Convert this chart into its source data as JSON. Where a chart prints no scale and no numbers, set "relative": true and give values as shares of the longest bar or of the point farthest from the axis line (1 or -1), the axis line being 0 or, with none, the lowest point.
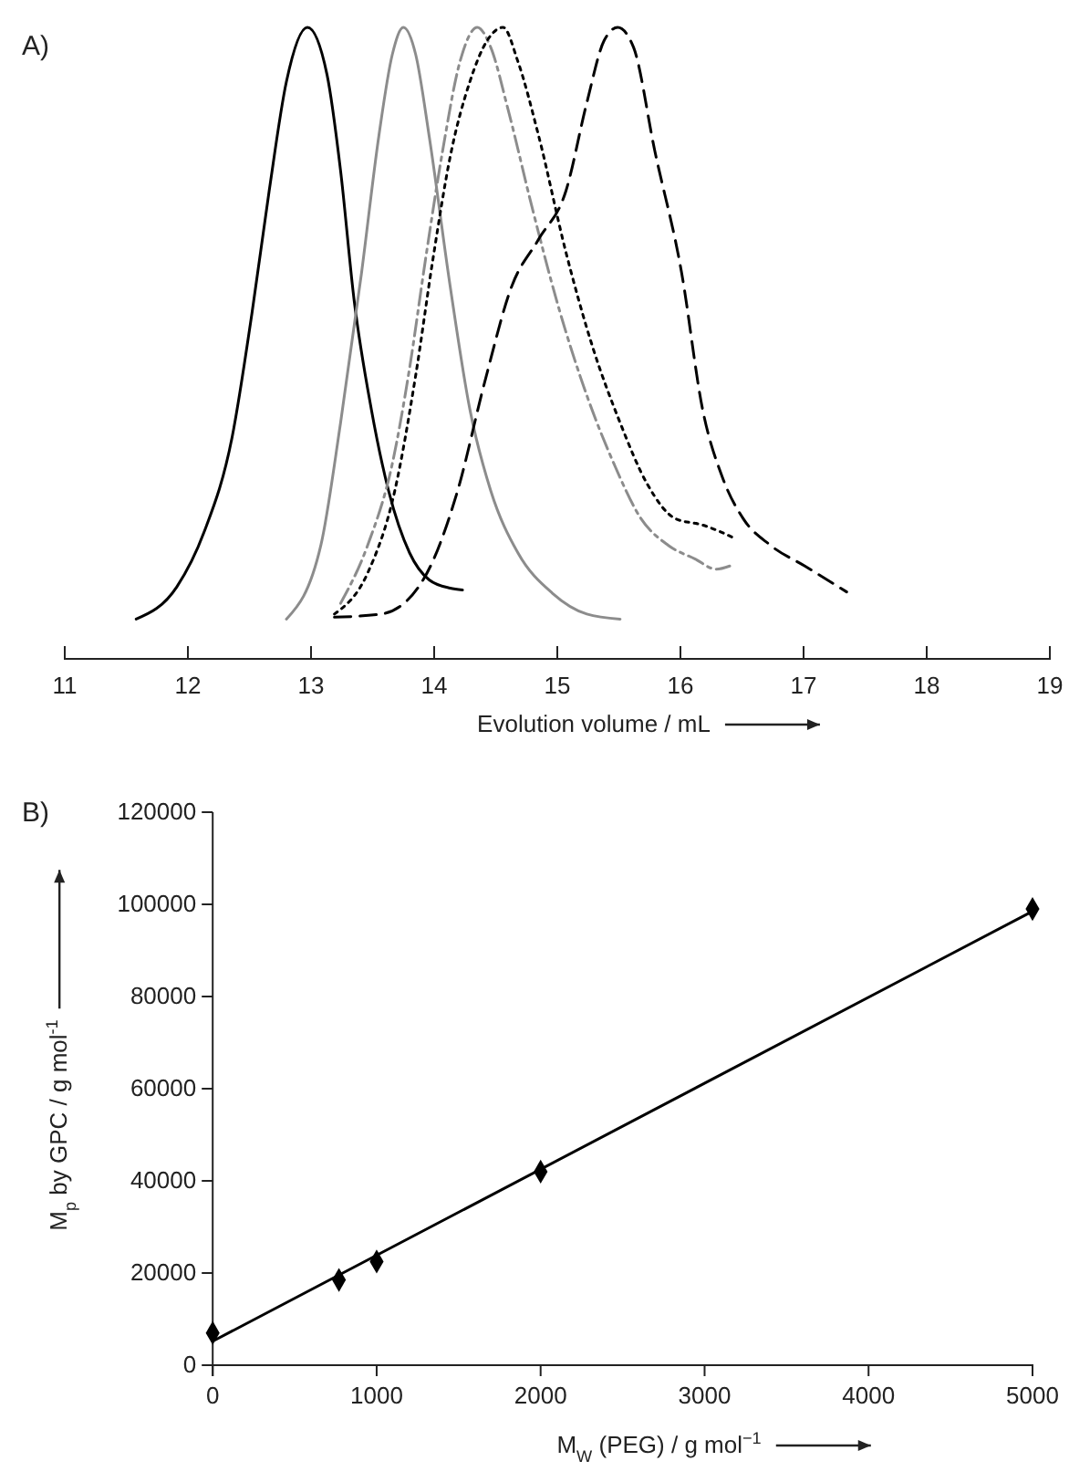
{
  "chart_data": [
    {
      "type": "line",
      "title": "A)",
      "xlabel": "Evolution volume / mL",
      "relative": true,
      "xlim": [
        11,
        19
      ],
      "xticks": [
        11,
        12,
        13,
        14,
        15,
        16,
        17,
        18,
        19
      ],
      "grid": false,
      "series": [
        {
          "color": "#000000",
          "line_style": "solid",
          "x": [
            11.58,
            11.91,
            12.13,
            12.36,
            12.52,
            12.66,
            12.8,
            12.97,
            13.13,
            13.24,
            13.35,
            13.49,
            13.63,
            13.8,
            13.96,
            14.13,
            14.23
          ],
          "values": [
            0.063,
            0.114,
            0.2,
            0.352,
            0.547,
            0.741,
            0.914,
            1.0,
            0.925,
            0.773,
            0.568,
            0.395,
            0.266,
            0.168,
            0.125,
            0.112,
            0.109
          ]
        },
        {
          "color": "#8c8c8c",
          "line_style": "solid",
          "x": [
            12.8,
            13.08,
            13.24,
            13.41,
            13.55,
            13.66,
            13.75,
            13.85,
            13.96,
            14.13,
            14.29,
            14.46,
            14.68,
            14.96,
            15.24,
            15.51
          ],
          "values": [
            0.063,
            0.18,
            0.374,
            0.611,
            0.827,
            0.957,
            1.0,
            0.957,
            0.827,
            0.59,
            0.395,
            0.266,
            0.168,
            0.104,
            0.071,
            0.063
          ]
        },
        {
          "color": "#8c8c8c",
          "line_style": "dashdot",
          "x": [
            13.24,
            13.46,
            13.66,
            13.8,
            13.93,
            14.07,
            14.21,
            14.35,
            14.46,
            14.6,
            14.79,
            15.01,
            15.24,
            15.46,
            15.68,
            15.9,
            16.12,
            16.29,
            16.4
          ],
          "values": [
            0.088,
            0.18,
            0.309,
            0.46,
            0.633,
            0.806,
            0.946,
            1.0,
            0.968,
            0.87,
            0.719,
            0.557,
            0.417,
            0.309,
            0.222,
            0.18,
            0.158,
            0.142,
            0.147
          ]
        },
        {
          "color": "#000000",
          "line_style": "dotted",
          "x": [
            13.19,
            13.46,
            13.68,
            13.85,
            13.99,
            14.13,
            14.29,
            14.43,
            14.56,
            14.68,
            14.85,
            15.07,
            15.29,
            15.51,
            15.73,
            15.96,
            16.18,
            16.45
          ],
          "values": [
            0.071,
            0.136,
            0.266,
            0.449,
            0.633,
            0.795,
            0.914,
            0.979,
            1.0,
            0.946,
            0.827,
            0.644,
            0.492,
            0.374,
            0.277,
            0.222,
            0.212,
            0.19
          ]
        },
        {
          "color": "#000000",
          "line_style": "dashed",
          "x": [
            13.19,
            13.57,
            13.91,
            14.19,
            14.41,
            14.63,
            14.85,
            15.07,
            15.24,
            15.38,
            15.49,
            15.62,
            15.79,
            16.01,
            16.18,
            16.34,
            16.51,
            16.73,
            17.01,
            17.35
          ],
          "values": [
            0.066,
            0.071,
            0.125,
            0.266,
            0.438,
            0.59,
            0.665,
            0.741,
            0.881,
            0.979,
            1.0,
            0.968,
            0.806,
            0.611,
            0.395,
            0.288,
            0.222,
            0.18,
            0.147,
            0.106
          ]
        }
      ]
    },
    {
      "type": "scatter",
      "title": "B)",
      "xlabel": "M$_{W}$ (PEG) / g mol$^{−1}$",
      "ylabel": "M$_{p}$ by GPC / g mol$^{-1}$",
      "xlim": [
        0,
        5000
      ],
      "xticks": [
        0,
        1000,
        2000,
        3000,
        4000,
        5000
      ],
      "ylim": [
        0,
        120000
      ],
      "yticks": [
        0,
        20000,
        40000,
        60000,
        80000,
        100000,
        120000
      ],
      "grid": false,
      "series": [
        {
          "marker": "diamond",
          "color": "#000000",
          "x": [
            0,
            770,
            1000,
            2000,
            5000
          ],
          "values": [
            7000,
            18500,
            22500,
            42000,
            99000
          ]
        },
        {
          "type": "line",
          "color": "#000000",
          "line_style": "solid",
          "x": [
            0,
            5000
          ],
          "values": [
            5200,
            98500
          ]
        }
      ]
    }
  ]
}
